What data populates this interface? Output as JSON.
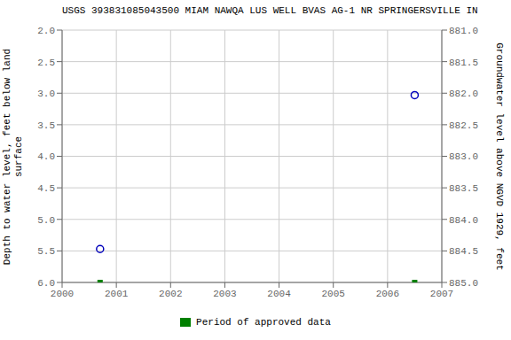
{
  "chart_data": {
    "type": "scatter",
    "title": "USGS 393831085043500 MIAM NAWQA LUS WELL BVAS AG-1 NR SPRINGERSVILLE IN",
    "y_label": "Depth to water level, feet below land\nsurface",
    "y2_label": "Groundwater level above NGVD 1929, feet",
    "xlim": [
      2000,
      2007
    ],
    "xticks": [
      2000,
      2001,
      2002,
      2003,
      2004,
      2005,
      2006,
      2007
    ],
    "ylim": [
      6.0,
      2.0
    ],
    "yticks": [
      {
        "value": 2.0,
        "label": "2.0"
      },
      2.5,
      {
        "value": 3.0,
        "label": "3.0"
      },
      3.5,
      {
        "value": 4.0,
        "label": "4.0"
      },
      4.5,
      {
        "value": 5.0,
        "label": "5.0"
      },
      5.5,
      {
        "value": 6.0,
        "label": "6.0"
      }
    ],
    "y2lim": [
      885.0,
      881.0
    ],
    "y2ticks": [
      {
        "value": 885.0,
        "label": "885.0"
      },
      884.5,
      {
        "value": 884.0,
        "label": "884.0"
      },
      883.5,
      {
        "value": 883.0,
        "label": "883.0"
      },
      882.5,
      {
        "value": 882.0,
        "label": "882.0"
      },
      881.5,
      {
        "value": 881.0,
        "label": "881.0"
      }
    ],
    "grid": true,
    "legend": "bottom",
    "series": [
      {
        "color": "#0000bb",
        "marker": "circle",
        "x": [
          2000.7,
          2006.5
        ],
        "values": [
          5.47,
          3.03
        ]
      },
      {
        "name": "Period of approved data",
        "color": "#008000",
        "marker": "square",
        "x": [
          2000.7,
          2006.5
        ],
        "values": [
          6.0,
          6.0
        ]
      }
    ]
  }
}
